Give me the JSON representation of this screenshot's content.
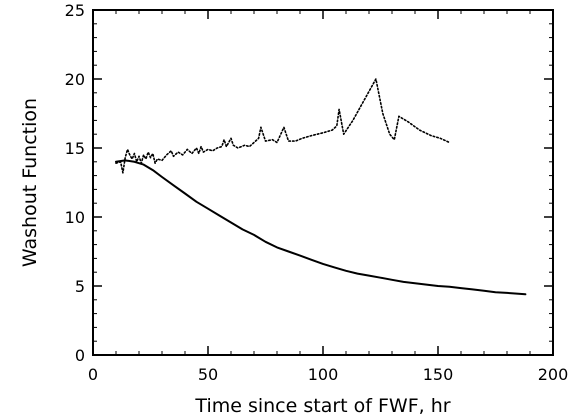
{
  "chart_data": {
    "type": "line",
    "title": "",
    "xlabel": "Time since start of FWF, hr",
    "ylabel": "Washout Function",
    "xlim": [
      0,
      200
    ],
    "ylim": [
      0,
      25
    ],
    "x_ticks": [
      0,
      50,
      100,
      150,
      200
    ],
    "y_ticks": [
      0,
      5,
      10,
      15,
      20,
      25
    ],
    "x_tick_labels": [
      "0",
      "50",
      "100",
      "150",
      "200"
    ],
    "y_tick_labels": [
      "0",
      "5",
      "10",
      "15",
      "20",
      "25"
    ],
    "x_minor_step": 10,
    "y_minor_step": 1,
    "grid": false,
    "legend": "none",
    "series": [
      {
        "style": "dotted",
        "color": "#000000",
        "points": [
          [
            10,
            13.9
          ],
          [
            12,
            14.0
          ],
          [
            13,
            13.2
          ],
          [
            14,
            14.3
          ],
          [
            15,
            14.9
          ],
          [
            16,
            14.5
          ],
          [
            17,
            14.2
          ],
          [
            18,
            14.6
          ],
          [
            19,
            14.0
          ],
          [
            20,
            14.4
          ],
          [
            21,
            13.9
          ],
          [
            22,
            14.5
          ],
          [
            23,
            14.2
          ],
          [
            24,
            14.7
          ],
          [
            25,
            14.3
          ],
          [
            26,
            14.6
          ],
          [
            27,
            13.9
          ],
          [
            28,
            14.2
          ],
          [
            30,
            14.1
          ],
          [
            32,
            14.5
          ],
          [
            34,
            14.8
          ],
          [
            35,
            14.4
          ],
          [
            37,
            14.7
          ],
          [
            39,
            14.5
          ],
          [
            41,
            14.9
          ],
          [
            43,
            14.6
          ],
          [
            45,
            15.0
          ],
          [
            46,
            14.6
          ],
          [
            47,
            15.1
          ],
          [
            48,
            14.7
          ],
          [
            50,
            14.9
          ],
          [
            52,
            14.8
          ],
          [
            54,
            15.0
          ],
          [
            56,
            15.1
          ],
          [
            57,
            15.6
          ],
          [
            58,
            15.1
          ],
          [
            60,
            15.7
          ],
          [
            61,
            15.2
          ],
          [
            63,
            15.0
          ],
          [
            66,
            15.2
          ],
          [
            68,
            15.1
          ],
          [
            70,
            15.4
          ],
          [
            72,
            15.7
          ],
          [
            73,
            16.5
          ],
          [
            75,
            15.5
          ],
          [
            78,
            15.6
          ],
          [
            80,
            15.4
          ],
          [
            83,
            16.5
          ],
          [
            85,
            15.5
          ],
          [
            88,
            15.5
          ],
          [
            91,
            15.7
          ],
          [
            95,
            15.9
          ],
          [
            100,
            16.1
          ],
          [
            104,
            16.3
          ],
          [
            106,
            16.6
          ],
          [
            107,
            17.8
          ],
          [
            109,
            16.0
          ],
          [
            113,
            17.0
          ],
          [
            118,
            18.5
          ],
          [
            123,
            20.0
          ],
          [
            126,
            17.5
          ],
          [
            129,
            16.0
          ],
          [
            131,
            15.6
          ],
          [
            133,
            17.3
          ],
          [
            137,
            16.9
          ],
          [
            142,
            16.3
          ],
          [
            147,
            15.9
          ],
          [
            151,
            15.7
          ],
          [
            155,
            15.4
          ]
        ]
      },
      {
        "style": "solid",
        "color": "#000000",
        "points": [
          [
            10,
            14.0
          ],
          [
            14,
            14.1
          ],
          [
            18,
            14.0
          ],
          [
            22,
            13.8
          ],
          [
            26,
            13.4
          ],
          [
            30,
            12.9
          ],
          [
            35,
            12.3
          ],
          [
            40,
            11.7
          ],
          [
            45,
            11.1
          ],
          [
            50,
            10.6
          ],
          [
            55,
            10.1
          ],
          [
            60,
            9.6
          ],
          [
            65,
            9.1
          ],
          [
            70,
            8.7
          ],
          [
            75,
            8.2
          ],
          [
            80,
            7.8
          ],
          [
            85,
            7.5
          ],
          [
            90,
            7.2
          ],
          [
            95,
            6.9
          ],
          [
            100,
            6.6
          ],
          [
            105,
            6.35
          ],
          [
            110,
            6.1
          ],
          [
            115,
            5.9
          ],
          [
            120,
            5.75
          ],
          [
            125,
            5.6
          ],
          [
            130,
            5.45
          ],
          [
            135,
            5.3
          ],
          [
            140,
            5.2
          ],
          [
            145,
            5.1
          ],
          [
            150,
            5.0
          ],
          [
            155,
            4.95
          ],
          [
            160,
            4.85
          ],
          [
            165,
            4.75
          ],
          [
            170,
            4.65
          ],
          [
            175,
            4.55
          ],
          [
            180,
            4.5
          ],
          [
            188,
            4.4
          ]
        ]
      }
    ]
  }
}
